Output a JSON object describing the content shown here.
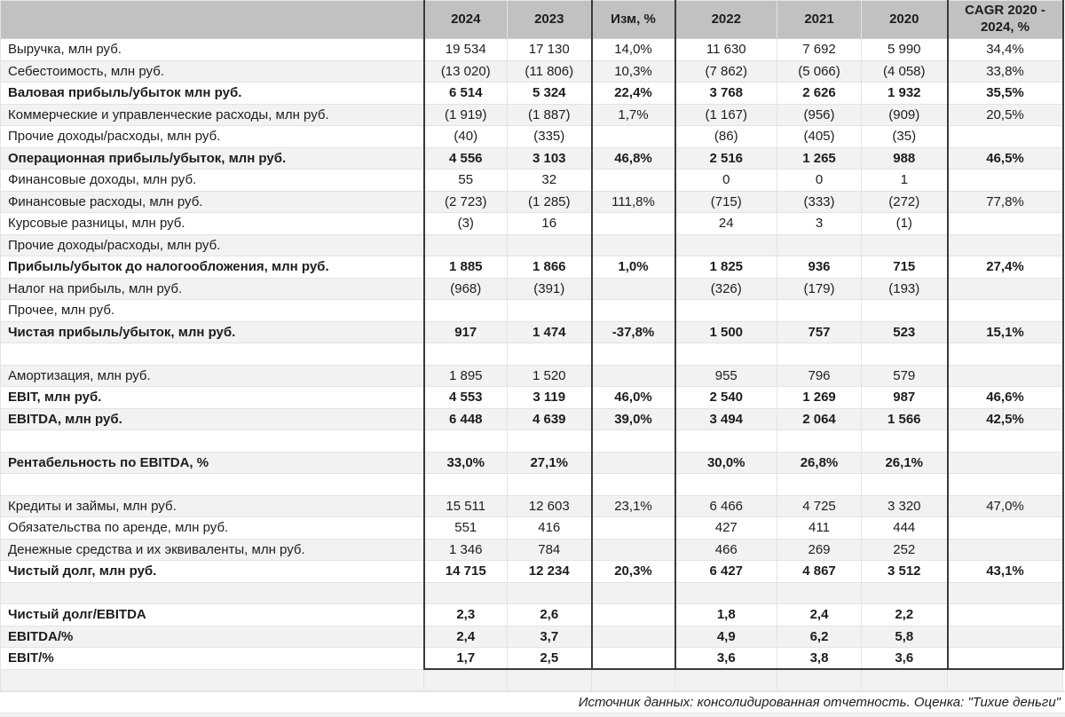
{
  "colors": {
    "header_bg": "#c1c1c1",
    "stripe_bg": "#f2f2f2",
    "border_dark": "#3a3a3a",
    "border_light": "#e3e3e3",
    "text": "#1d1d1d"
  },
  "table": {
    "columns": [
      {
        "key": "label",
        "label": ""
      },
      {
        "key": "y2024",
        "label": "2024"
      },
      {
        "key": "y2023",
        "label": "2023"
      },
      {
        "key": "chg",
        "label": "Изм, %"
      },
      {
        "key": "y2022",
        "label": "2022"
      },
      {
        "key": "y2021",
        "label": "2021"
      },
      {
        "key": "y2020",
        "label": "2020"
      },
      {
        "key": "cagr",
        "label": "CAGR 2020 - 2024, %"
      }
    ],
    "rows": [
      {
        "label": "Выручка, млн руб.",
        "bold": false,
        "values": [
          "19 534",
          "17 130",
          "14,0%",
          "11 630",
          "7 692",
          "5 990",
          "34,4%"
        ]
      },
      {
        "label": "Себестоимость, млн руб.",
        "bold": false,
        "values": [
          "(13 020)",
          "(11 806)",
          "10,3%",
          "(7 862)",
          "(5 066)",
          "(4 058)",
          "33,8%"
        ]
      },
      {
        "label": "Валовая прибыль/убыток млн руб.",
        "bold": true,
        "values": [
          "6 514",
          "5 324",
          "22,4%",
          "3 768",
          "2 626",
          "1 932",
          "35,5%"
        ]
      },
      {
        "label": "Коммерческие и управленческие расходы, млн руб.",
        "bold": false,
        "values": [
          "(1 919)",
          "(1 887)",
          "1,7%",
          "(1 167)",
          "(956)",
          "(909)",
          "20,5%"
        ]
      },
      {
        "label": "Прочие доходы/расходы, млн руб.",
        "bold": false,
        "values": [
          "(40)",
          "(335)",
          "",
          "(86)",
          "(405)",
          "(35)",
          ""
        ]
      },
      {
        "label": "Операционная прибыль/убыток, млн руб.",
        "bold": true,
        "values": [
          "4 556",
          "3 103",
          "46,8%",
          "2 516",
          "1 265",
          "988",
          "46,5%"
        ]
      },
      {
        "label": "Финансовые доходы, млн руб.",
        "bold": false,
        "values": [
          "55",
          "32",
          "",
          "0",
          "0",
          "1",
          ""
        ]
      },
      {
        "label": "Финансовые расходы, млн руб.",
        "bold": false,
        "values": [
          "(2 723)",
          "(1 285)",
          "111,8%",
          "(715)",
          "(333)",
          "(272)",
          "77,8%"
        ]
      },
      {
        "label": "Курсовые разницы, млн руб.",
        "bold": false,
        "values": [
          "(3)",
          "16",
          "",
          "24",
          "3",
          "(1)",
          ""
        ]
      },
      {
        "label": "Прочие доходы/расходы, млн руб.",
        "bold": false,
        "values": [
          "",
          "",
          "",
          "",
          "",
          "",
          ""
        ]
      },
      {
        "label": "Прибыль/убыток до налогообложения, млн руб.",
        "bold": true,
        "values": [
          "1 885",
          "1 866",
          "1,0%",
          "1 825",
          "936",
          "715",
          "27,4%"
        ]
      },
      {
        "label": "Налог на прибыль, млн руб.",
        "bold": false,
        "values": [
          "(968)",
          "(391)",
          "",
          "(326)",
          "(179)",
          "(193)",
          ""
        ]
      },
      {
        "label": "Прочее, млн руб.",
        "bold": false,
        "values": [
          "",
          "",
          "",
          "",
          "",
          "",
          ""
        ]
      },
      {
        "label": "Чистая прибыль/убыток, млн руб.",
        "bold": true,
        "values": [
          "917",
          "1 474",
          "-37,8%",
          "1 500",
          "757",
          "523",
          "15,1%"
        ]
      },
      {
        "label": "",
        "bold": false,
        "values": [
          "",
          "",
          "",
          "",
          "",
          "",
          ""
        ]
      },
      {
        "label": "Амортизация, млн руб.",
        "bold": false,
        "values": [
          "1 895",
          "1 520",
          "",
          "955",
          "796",
          "579",
          ""
        ]
      },
      {
        "label": "EBIT, млн руб.",
        "bold": true,
        "values": [
          "4 553",
          "3 119",
          "46,0%",
          "2 540",
          "1 269",
          "987",
          "46,6%"
        ]
      },
      {
        "label": "EBITDA, млн руб.",
        "bold": true,
        "values": [
          "6 448",
          "4 639",
          "39,0%",
          "3 494",
          "2 064",
          "1 566",
          "42,5%"
        ]
      },
      {
        "label": "",
        "bold": false,
        "values": [
          "",
          "",
          "",
          "",
          "",
          "",
          ""
        ]
      },
      {
        "label": "Рентабельность по EBITDA, %",
        "bold": true,
        "values": [
          "33,0%",
          "27,1%",
          "",
          "30,0%",
          "26,8%",
          "26,1%",
          ""
        ]
      },
      {
        "label": "",
        "bold": false,
        "values": [
          "",
          "",
          "",
          "",
          "",
          "",
          ""
        ]
      },
      {
        "label": "Кредиты и займы, млн руб.",
        "bold": false,
        "values": [
          "15 511",
          "12 603",
          "23,1%",
          "6 466",
          "4 725",
          "3 320",
          "47,0%"
        ]
      },
      {
        "label": "Обязательства по аренде, млн руб.",
        "bold": false,
        "values": [
          "551",
          "416",
          "",
          "427",
          "411",
          "444",
          ""
        ]
      },
      {
        "label": "Денежные средства и их эквиваленты, млн руб.",
        "bold": false,
        "values": [
          "1 346",
          "784",
          "",
          "466",
          "269",
          "252",
          ""
        ]
      },
      {
        "label": "Чистый долг, млн руб.",
        "bold": true,
        "values": [
          "14 715",
          "12 234",
          "20,3%",
          "6 427",
          "4 867",
          "3 512",
          "43,1%"
        ]
      },
      {
        "label": "",
        "bold": false,
        "values": [
          "",
          "",
          "",
          "",
          "",
          "",
          ""
        ]
      },
      {
        "label": "Чистый долг/EBITDA",
        "bold": true,
        "values": [
          "2,3",
          "2,6",
          "",
          "1,8",
          "2,4",
          "2,2",
          ""
        ]
      },
      {
        "label": "EBITDA/%",
        "bold": true,
        "values": [
          "2,4",
          "3,7",
          "",
          "4,9",
          "6,2",
          "5,8",
          ""
        ]
      },
      {
        "label": "EBIT/%",
        "bold": true,
        "values": [
          "1,7",
          "2,5",
          "",
          "3,6",
          "3,8",
          "3,6",
          ""
        ]
      },
      {
        "label": "",
        "bold": false,
        "values": [
          "",
          "",
          "",
          "",
          "",
          "",
          ""
        ]
      }
    ]
  },
  "footer": {
    "source_note": "Источник данных: консолидированная отчетность. Оценка: \"Тихие деньги\""
  }
}
